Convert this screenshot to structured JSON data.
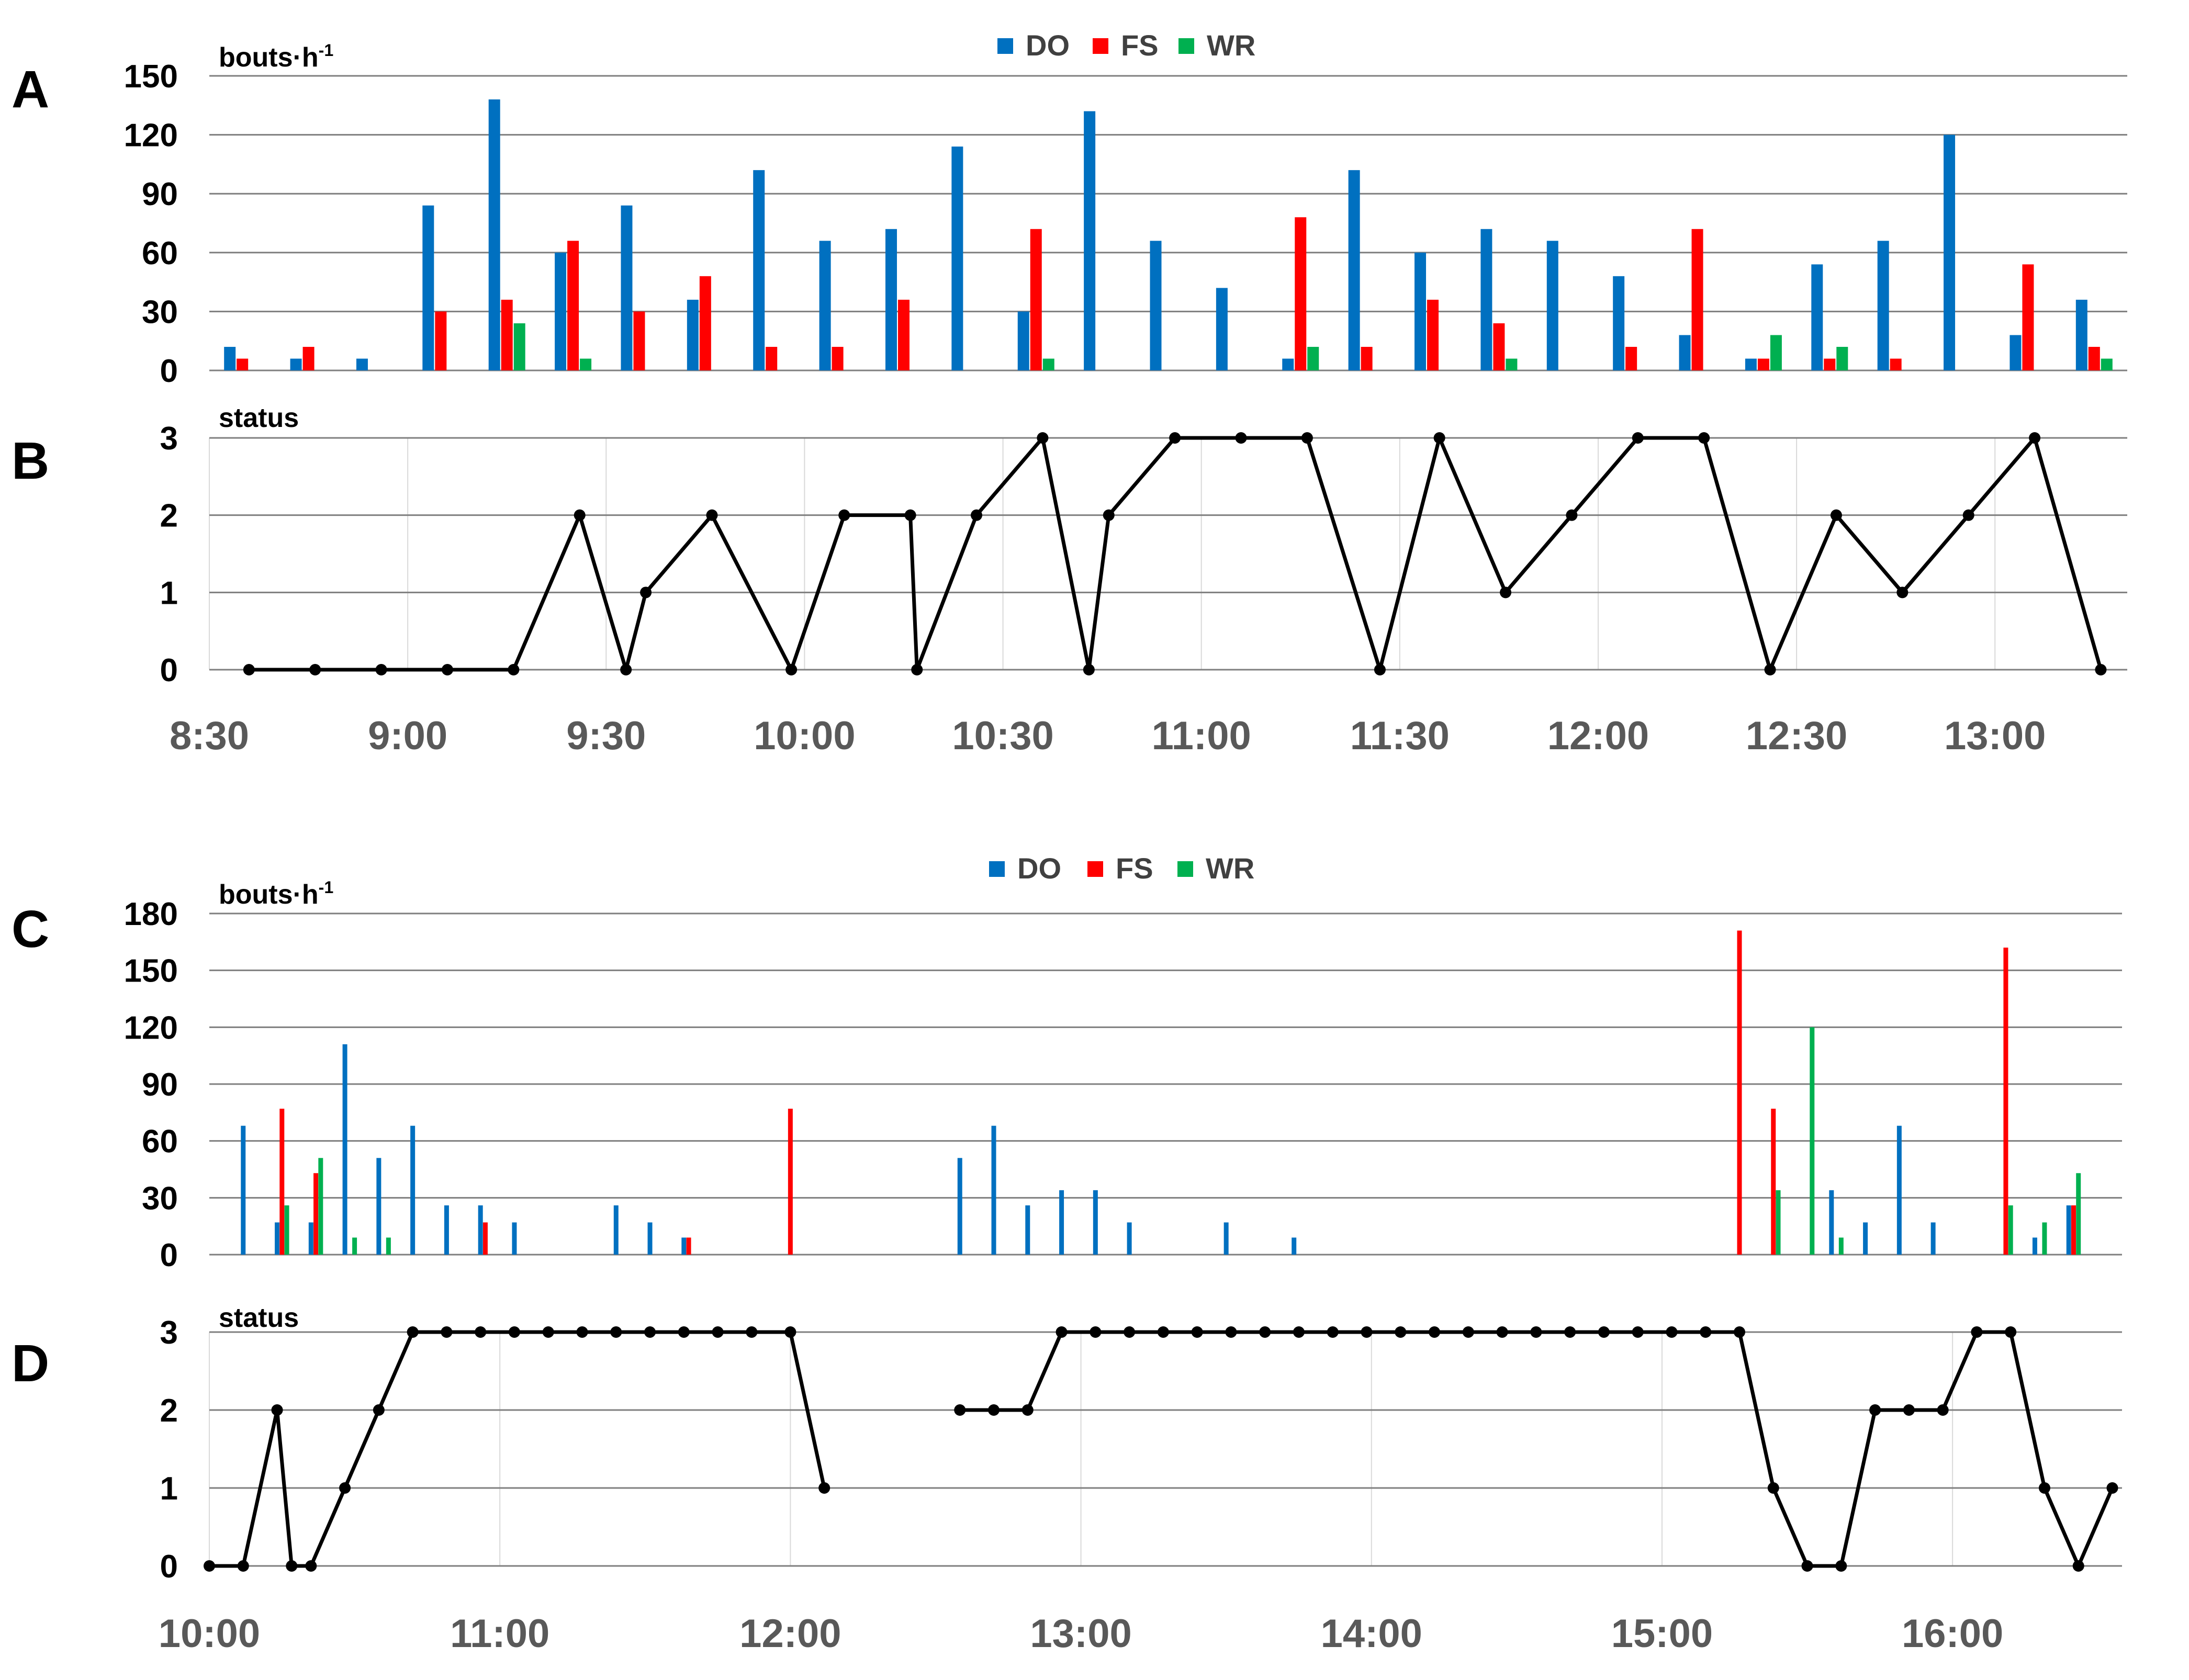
{
  "colors": {
    "DO": "#0070C0",
    "FS": "#FF0000",
    "WR": "#00B050",
    "status": "#000000",
    "grid": "#7f7f7f",
    "vgrid": "#d9d9d9"
  },
  "legend": {
    "items": [
      {
        "key": "DO",
        "label": "DO"
      },
      {
        "key": "FS",
        "label": "FS"
      },
      {
        "key": "WR",
        "label": "WR"
      }
    ]
  },
  "panels": {
    "A": {
      "label": "A",
      "unit_main": "bouts·h",
      "unit_sup": "-1"
    },
    "B": {
      "label": "B",
      "unit_main": "status"
    },
    "C": {
      "label": "C",
      "unit_main": "bouts·h",
      "unit_sup": "-1"
    },
    "D": {
      "label": "D",
      "unit_main": "status"
    }
  },
  "x_ticks_top": [
    "8:30",
    "9:00",
    "9:30",
    "10:00",
    "10:30",
    "11:00",
    "11:30",
    "12:00",
    "12:30",
    "13:00"
  ],
  "x_ticks_bottom": [
    "10:00",
    "11:00",
    "12:00",
    "13:00",
    "14:00",
    "15:00",
    "16:00"
  ],
  "chart_data": [
    {
      "panel": "A",
      "type": "bar",
      "ylabel": "bouts·h-1",
      "ylim": [
        0,
        150
      ],
      "yticks": [
        0,
        30,
        60,
        90,
        120,
        150
      ],
      "xlim": [
        "8:30",
        "13:20"
      ],
      "x": [
        "8:35",
        "8:45",
        "8:55",
        "9:05",
        "9:15",
        "9:25",
        "9:35",
        "9:45",
        "9:55",
        "10:05",
        "10:15",
        "10:25",
        "10:35",
        "10:45",
        "10:55",
        "11:05",
        "11:15",
        "11:25",
        "11:35",
        "11:45",
        "11:55",
        "12:05",
        "12:15",
        "12:25",
        "12:35",
        "12:45",
        "12:55",
        "13:05",
        "13:15"
      ],
      "series": [
        {
          "name": "DO",
          "values": [
            12,
            6,
            6,
            84,
            138,
            60,
            84,
            36,
            102,
            66,
            72,
            114,
            30,
            132,
            66,
            42,
            6,
            102,
            60,
            72,
            66,
            48,
            18,
            6,
            54,
            66,
            120,
            18,
            36
          ]
        },
        {
          "name": "FS",
          "values": [
            6,
            12,
            0,
            30,
            36,
            66,
            30,
            48,
            12,
            12,
            36,
            0,
            72,
            0,
            0,
            0,
            78,
            12,
            36,
            24,
            0,
            12,
            72,
            6,
            6,
            6,
            0,
            54,
            12
          ]
        },
        {
          "name": "WR",
          "values": [
            0,
            0,
            0,
            0,
            24,
            6,
            0,
            0,
            0,
            0,
            0,
            0,
            6,
            0,
            0,
            0,
            12,
            0,
            0,
            6,
            0,
            0,
            0,
            18,
            12,
            0,
            0,
            0,
            6
          ]
        }
      ],
      "grid": true,
      "legend": "top-center"
    },
    {
      "panel": "B",
      "type": "line",
      "ylabel": "status",
      "ylim": [
        0,
        3
      ],
      "yticks": [
        0,
        1,
        2,
        3
      ],
      "xlim": [
        "8:30",
        "13:20"
      ],
      "x": [
        "8:36",
        "8:46",
        "8:56",
        "9:06",
        "9:16",
        "9:26",
        "9:33",
        "9:36",
        "9:46",
        "9:58",
        "10:06",
        "10:16",
        "10:17",
        "10:26",
        "10:36",
        "10:43",
        "10:46",
        "10:56",
        "11:06",
        "11:16",
        "11:27",
        "11:36",
        "11:46",
        "11:56",
        "12:06",
        "12:16",
        "12:26",
        "12:36",
        "12:46",
        "12:56",
        "13:06",
        "13:16"
      ],
      "series": [
        {
          "name": "status",
          "values": [
            0,
            0,
            0,
            0,
            0,
            2,
            0,
            1,
            2,
            0,
            2,
            2,
            0,
            2,
            3,
            0,
            2,
            3,
            3,
            3,
            0,
            3,
            1,
            2,
            3,
            3,
            0,
            2,
            1,
            2,
            3,
            0
          ]
        }
      ],
      "grid": true
    },
    {
      "panel": "C",
      "type": "bar",
      "ylabel": "bouts·h-1",
      "ylim": [
        0,
        180
      ],
      "yticks": [
        0,
        30,
        60,
        90,
        120,
        150,
        180
      ],
      "xlim": [
        "10:00",
        "16:35"
      ],
      "bars": [
        {
          "series": "DO",
          "x": "10:07",
          "value": 68
        },
        {
          "series": "DO",
          "x": "10:14",
          "value": 17
        },
        {
          "series": "FS",
          "x": "10:15",
          "value": 77
        },
        {
          "series": "WR",
          "x": "10:16",
          "value": 26
        },
        {
          "series": "DO",
          "x": "10:21",
          "value": 17
        },
        {
          "series": "FS",
          "x": "10:22",
          "value": 43
        },
        {
          "series": "WR",
          "x": "10:23",
          "value": 51
        },
        {
          "series": "DO",
          "x": "10:28",
          "value": 111
        },
        {
          "series": "WR",
          "x": "10:30",
          "value": 9
        },
        {
          "series": "DO",
          "x": "10:35",
          "value": 51
        },
        {
          "series": "WR",
          "x": "10:37",
          "value": 9
        },
        {
          "series": "DO",
          "x": "10:42",
          "value": 68
        },
        {
          "series": "DO",
          "x": "10:49",
          "value": 26
        },
        {
          "series": "DO",
          "x": "10:56",
          "value": 26
        },
        {
          "series": "FS",
          "x": "10:57",
          "value": 17
        },
        {
          "series": "DO",
          "x": "11:03",
          "value": 17
        },
        {
          "series": "DO",
          "x": "11:24",
          "value": 26
        },
        {
          "series": "DO",
          "x": "11:31",
          "value": 17
        },
        {
          "series": "DO",
          "x": "11:38",
          "value": 9
        },
        {
          "series": "FS",
          "x": "11:39",
          "value": 9
        },
        {
          "series": "FS",
          "x": "12:00",
          "value": 77
        },
        {
          "series": "DO",
          "x": "12:35",
          "value": 51
        },
        {
          "series": "DO",
          "x": "12:42",
          "value": 68
        },
        {
          "series": "DO",
          "x": "12:49",
          "value": 26
        },
        {
          "series": "DO",
          "x": "12:56",
          "value": 34
        },
        {
          "series": "DO",
          "x": "13:03",
          "value": 34
        },
        {
          "series": "DO",
          "x": "13:10",
          "value": 17
        },
        {
          "series": "DO",
          "x": "13:30",
          "value": 17
        },
        {
          "series": "DO",
          "x": "13:44",
          "value": 9
        },
        {
          "series": "FS",
          "x": "15:16",
          "value": 171
        },
        {
          "series": "FS",
          "x": "15:23",
          "value": 77
        },
        {
          "series": "WR",
          "x": "15:24",
          "value": 34
        },
        {
          "series": "WR",
          "x": "15:31",
          "value": 120
        },
        {
          "series": "DO",
          "x": "15:35",
          "value": 34
        },
        {
          "series": "WR",
          "x": "15:37",
          "value": 9
        },
        {
          "series": "DO",
          "x": "15:42",
          "value": 17
        },
        {
          "series": "DO",
          "x": "15:49",
          "value": 68
        },
        {
          "series": "DO",
          "x": "15:56",
          "value": 17
        },
        {
          "series": "FS",
          "x": "16:11",
          "value": 162
        },
        {
          "series": "WR",
          "x": "16:12",
          "value": 26
        },
        {
          "series": "DO",
          "x": "16:17",
          "value": 9
        },
        {
          "series": "WR",
          "x": "16:19",
          "value": 17
        },
        {
          "series": "DO",
          "x": "16:24",
          "value": 26
        },
        {
          "series": "FS",
          "x": "16:25",
          "value": 26
        },
        {
          "series": "WR",
          "x": "16:26",
          "value": 43
        }
      ],
      "grid": true,
      "legend": "top-center"
    },
    {
      "panel": "D",
      "type": "line",
      "ylabel": "status",
      "ylim": [
        0,
        3
      ],
      "yticks": [
        0,
        1,
        2,
        3
      ],
      "xlim": [
        "10:00",
        "16:35"
      ],
      "series": [
        {
          "name": "status",
          "segments": [
            {
              "x": [
                "10:00",
                "10:07",
                "10:14",
                "10:17",
                "10:21",
                "10:28",
                "10:35",
                "10:42",
                "10:49",
                "10:56",
                "11:03",
                "11:10",
                "11:17",
                "11:24",
                "11:31",
                "11:38",
                "11:45",
                "11:52",
                "12:00",
                "12:07"
              ],
              "values": [
                0,
                0,
                2,
                0,
                0,
                1,
                2,
                3,
                3,
                3,
                3,
                3,
                3,
                3,
                3,
                3,
                3,
                3,
                3,
                1
              ]
            },
            {
              "x": [
                "12:35",
                "12:42",
                "12:49",
                "12:56",
                "13:03",
                "13:10",
                "13:17",
                "13:24",
                "13:31",
                "13:38",
                "13:45",
                "13:52",
                "13:59",
                "14:06",
                "14:13",
                "14:20",
                "14:27",
                "14:34",
                "14:41",
                "14:48",
                "14:55",
                "15:02",
                "15:09",
                "15:16",
                "15:23",
                "15:30",
                "15:37",
                "15:44",
                "15:51",
                "15:58",
                "16:05",
                "16:12",
                "16:19",
                "16:26",
                "16:33"
              ],
              "values": [
                2,
                2,
                2,
                3,
                3,
                3,
                3,
                3,
                3,
                3,
                3,
                3,
                3,
                3,
                3,
                3,
                3,
                3,
                3,
                3,
                3,
                3,
                3,
                3,
                1,
                0,
                0,
                2,
                2,
                2,
                3,
                3,
                1,
                0,
                1
              ]
            }
          ]
        }
      ],
      "grid": true
    }
  ]
}
